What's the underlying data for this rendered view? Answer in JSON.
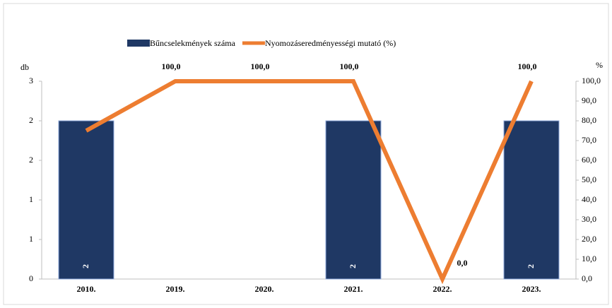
{
  "chart_data": {
    "type": "bar-line",
    "y_axis_label": "db",
    "y2_axis_label": "%",
    "categories": [
      "2010.",
      "2019.",
      "2020.",
      "2021.",
      "2022.",
      "2023."
    ],
    "series": [
      {
        "name": "Bűncselekmények száma",
        "type": "bar",
        "color": "#1f3864",
        "values": [
          2,
          0,
          0,
          2,
          0,
          2
        ]
      },
      {
        "name": "Nyomozáseredményességi mutató (%)",
        "type": "line",
        "axis": "y2",
        "color": "#ed7d31",
        "values": [
          75,
          100,
          100,
          100,
          0,
          100
        ],
        "value_labels": [
          null,
          "100,0",
          "100,0",
          "100,0",
          "0,0",
          "100,0"
        ]
      }
    ],
    "ylim": [
      0,
      2.5
    ],
    "yticks": [
      0,
      {
        "value": 0.5,
        "label": "1"
      },
      1,
      {
        "value": 1.5,
        "label": "2"
      },
      2,
      {
        "value": 2.5,
        "label": "3"
      }
    ],
    "y2lim": [
      0,
      100
    ],
    "y2ticks": [
      {
        "value": 0,
        "label": "0,0"
      },
      {
        "value": 10,
        "label": "10,0"
      },
      {
        "value": 20,
        "label": "20,0"
      },
      {
        "value": 30,
        "label": "30,0"
      },
      {
        "value": 40,
        "label": "40,0"
      },
      {
        "value": 50,
        "label": "50,0"
      },
      {
        "value": 60,
        "label": "60,0"
      },
      {
        "value": 70,
        "label": "70,0"
      },
      {
        "value": 80,
        "label": "80,0"
      },
      {
        "value": 90,
        "label": "90,0"
      },
      {
        "value": 100,
        "label": "100,0"
      }
    ],
    "legend": "top",
    "grid": false
  }
}
